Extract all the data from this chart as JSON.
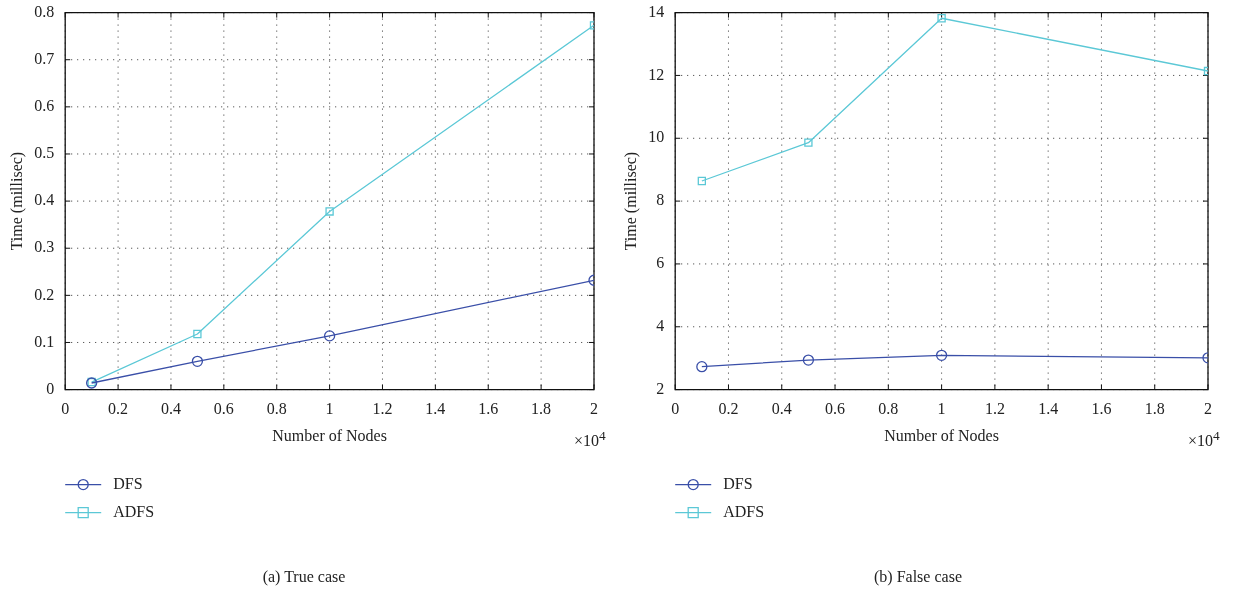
{
  "chart_data": [
    {
      "type": "line",
      "xlabel": "Number of Nodes",
      "ylabel": "Time (millisec)",
      "x": [
        0.1,
        0.5,
        1,
        2
      ],
      "series": [
        {
          "name": "DFS",
          "color": "#3a4fa8",
          "marker": "circle",
          "values": [
            0.014,
            0.06,
            0.114,
            0.232
          ]
        },
        {
          "name": "ADFS",
          "color": "#5bc8d6",
          "marker": "square",
          "values": [
            0.016,
            0.118,
            0.378,
            0.773
          ]
        }
      ],
      "xlim": [
        0,
        2
      ],
      "xticks": [
        0,
        0.2,
        0.4,
        0.6,
        0.8,
        1,
        1.2,
        1.4,
        1.6,
        1.8,
        2
      ],
      "ylim": [
        0,
        0.8
      ],
      "yticks": [
        0,
        0.1,
        0.2,
        0.3,
        0.4,
        0.5,
        0.6,
        0.7,
        0.8
      ],
      "grid": true,
      "legend": "bottom left",
      "line_style": "solid",
      "annotations": [
        "×10$^{4}$",
        "(a)  True case"
      ]
    },
    {
      "type": "line",
      "xlabel": "Number of Nodes",
      "ylabel": "Time (millisec)",
      "x": [
        0.1,
        0.5,
        1,
        2
      ],
      "series": [
        {
          "name": "DFS",
          "color": "#3a4fa8",
          "marker": "circle",
          "values": [
            2.73,
            2.94,
            3.09,
            3.01
          ]
        },
        {
          "name": "ADFS",
          "color": "#5bc8d6",
          "marker": "square",
          "values": [
            8.64,
            9.86,
            13.82,
            12.14
          ]
        }
      ],
      "xlim": [
        0,
        2
      ],
      "xticks": [
        0,
        0.2,
        0.4,
        0.6,
        0.8,
        1,
        1.2,
        1.4,
        1.6,
        1.8,
        2
      ],
      "ylim": [
        2,
        14
      ],
      "yticks": [
        2,
        4,
        6,
        8,
        10,
        12,
        14
      ],
      "grid": true,
      "legend": "bottom left",
      "line_style": "solid",
      "annotations": [
        "×10$^{4}$",
        "(b)  False case"
      ]
    }
  ]
}
